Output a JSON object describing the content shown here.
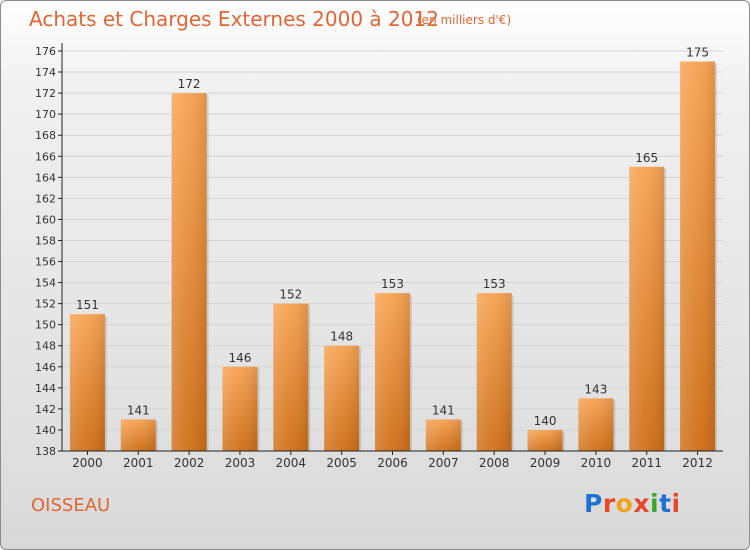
{
  "header": {
    "title": "Achats et Charges Externes 2000 à 2012",
    "subtitle": "(en milliers d'€)"
  },
  "footer": {
    "commune": "OISSEAU",
    "logo_text": "Proxiti",
    "logo_colors": [
      "#1e73d2",
      "#e8462e",
      "#f0a41d",
      "#e8462e",
      "#3aa830",
      "#1e73d2",
      "#e8462e"
    ]
  },
  "colors": {
    "title": "#e06633",
    "bar_top": "#f7a252",
    "bar_bottom": "#cf6f18",
    "axis": "#222222",
    "grid": "#d4d4d4"
  },
  "chart_data": {
    "type": "bar",
    "categories": [
      "2000",
      "2001",
      "2002",
      "2003",
      "2004",
      "2005",
      "2006",
      "2007",
      "2008",
      "2009",
      "2010",
      "2011",
      "2012"
    ],
    "values": [
      151,
      141,
      172,
      146,
      152,
      148,
      153,
      141,
      153,
      140,
      143,
      165,
      175
    ],
    "yticks": [
      138,
      140,
      142,
      144,
      146,
      148,
      150,
      152,
      154,
      156,
      158,
      160,
      162,
      164,
      166,
      168,
      170,
      172,
      174,
      176
    ],
    "ylim": [
      138,
      176
    ],
    "title": "Achats et Charges Externes 2000 à 2012",
    "xlabel": "",
    "ylabel": "",
    "grid": true
  }
}
